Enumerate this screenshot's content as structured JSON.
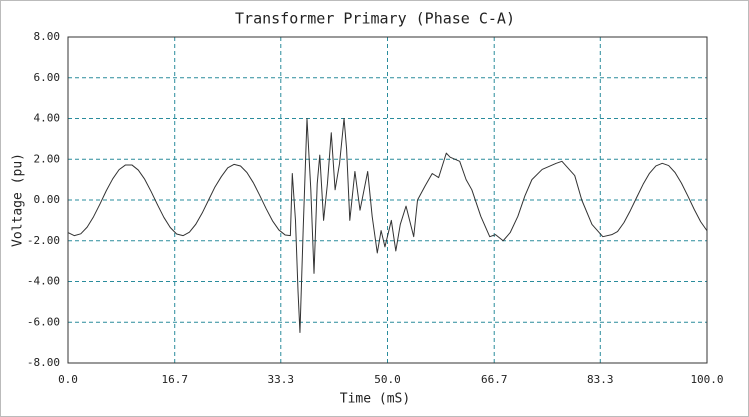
{
  "chart_data": {
    "type": "line",
    "title": "Transformer Primary (Phase C-A)",
    "x_label": "Time (mS)",
    "y_label": "Voltage (pu)",
    "grid": true,
    "xlim": [
      0,
      100
    ],
    "ylim": [
      -8,
      8
    ],
    "xticks": [
      {
        "value": 0,
        "label": "0.0"
      },
      16.7,
      33.3,
      {
        "value": 50,
        "label": "50.0"
      },
      66.7,
      83.3,
      {
        "value": 100,
        "label": "100.0"
      }
    ],
    "yticks": [
      {
        "value": -8,
        "label": "-8.00"
      },
      {
        "value": -6,
        "label": "-6.00"
      },
      {
        "value": -4,
        "label": "-4.00"
      },
      {
        "value": -2,
        "label": "-2.00"
      },
      {
        "value": 0,
        "label": "0.00"
      },
      {
        "value": 2,
        "label": "2.00"
      },
      {
        "value": 4,
        "label": "4.00"
      },
      {
        "value": 6,
        "label": "6.00"
      },
      {
        "value": 8,
        "label": "8.00"
      }
    ],
    "x": [
      0,
      1,
      2,
      3,
      4,
      5,
      6,
      7,
      8,
      9,
      10,
      11,
      12,
      13,
      14,
      15,
      16,
      17,
      18,
      19,
      20,
      21,
      22,
      23,
      24,
      25,
      26,
      27,
      28,
      29,
      30,
      31,
      32,
      33,
      34,
      34.8,
      35.1,
      35.6,
      36.0,
      36.3,
      36.8,
      37.4,
      38.0,
      38.5,
      39.0,
      39.4,
      40.0,
      40.6,
      41.2,
      41.8,
      42.5,
      43.2,
      43.6,
      44.1,
      44.9,
      45.7,
      46.9,
      47.6,
      48.4,
      49.0,
      49.6,
      50.6,
      51.3,
      52.0,
      52.9,
      54.1,
      54.7,
      55.9,
      57.0,
      58.0,
      59.2,
      59.8,
      61.3,
      62.3,
      63.2,
      64.6,
      66.0,
      66.9,
      68.1,
      69.2,
      70.4,
      71.5,
      72.6,
      74.2,
      76.4,
      77.3,
      79.3,
      80.4,
      82.0,
      83.7,
      85.1,
      86,
      87,
      88,
      89,
      90,
      91,
      92,
      93,
      94,
      95,
      96,
      97,
      98,
      99,
      100
    ],
    "values": [
      -1.6,
      -1.75,
      -1.66,
      -1.33,
      -0.82,
      -0.2,
      0.46,
      1.04,
      1.49,
      1.72,
      1.72,
      1.47,
      1.02,
      0.42,
      -0.23,
      -0.85,
      -1.35,
      -1.67,
      -1.75,
      -1.58,
      -1.19,
      -0.64,
      0.0,
      0.64,
      1.15,
      1.58,
      1.75,
      1.67,
      1.35,
      0.85,
      0.23,
      -0.42,
      -1.02,
      -1.47,
      -1.72,
      -1.75,
      1.3,
      -1.0,
      -4.5,
      -6.5,
      -1.5,
      4.0,
      0.5,
      -3.6,
      0.8,
      2.2,
      -1.0,
      0.8,
      3.3,
      0.5,
      1.8,
      4.0,
      2.5,
      -1.0,
      1.4,
      -0.5,
      1.4,
      -0.8,
      -2.6,
      -1.5,
      -2.3,
      -1.0,
      -2.5,
      -1.2,
      -0.3,
      -1.8,
      0.0,
      0.7,
      1.3,
      1.1,
      2.3,
      2.1,
      1.9,
      1.0,
      0.5,
      -0.8,
      -1.8,
      -1.7,
      -2.0,
      -1.6,
      -0.8,
      0.2,
      1.0,
      1.5,
      1.8,
      1.9,
      1.2,
      0.0,
      -1.2,
      -1.8,
      -1.7,
      -1.55,
      -1.11,
      -0.52,
      0.13,
      0.77,
      1.31,
      1.67,
      1.8,
      1.69,
      1.35,
      0.83,
      0.2,
      -0.46,
      -1.06,
      -1.51
    ],
    "color": "#333333"
  }
}
